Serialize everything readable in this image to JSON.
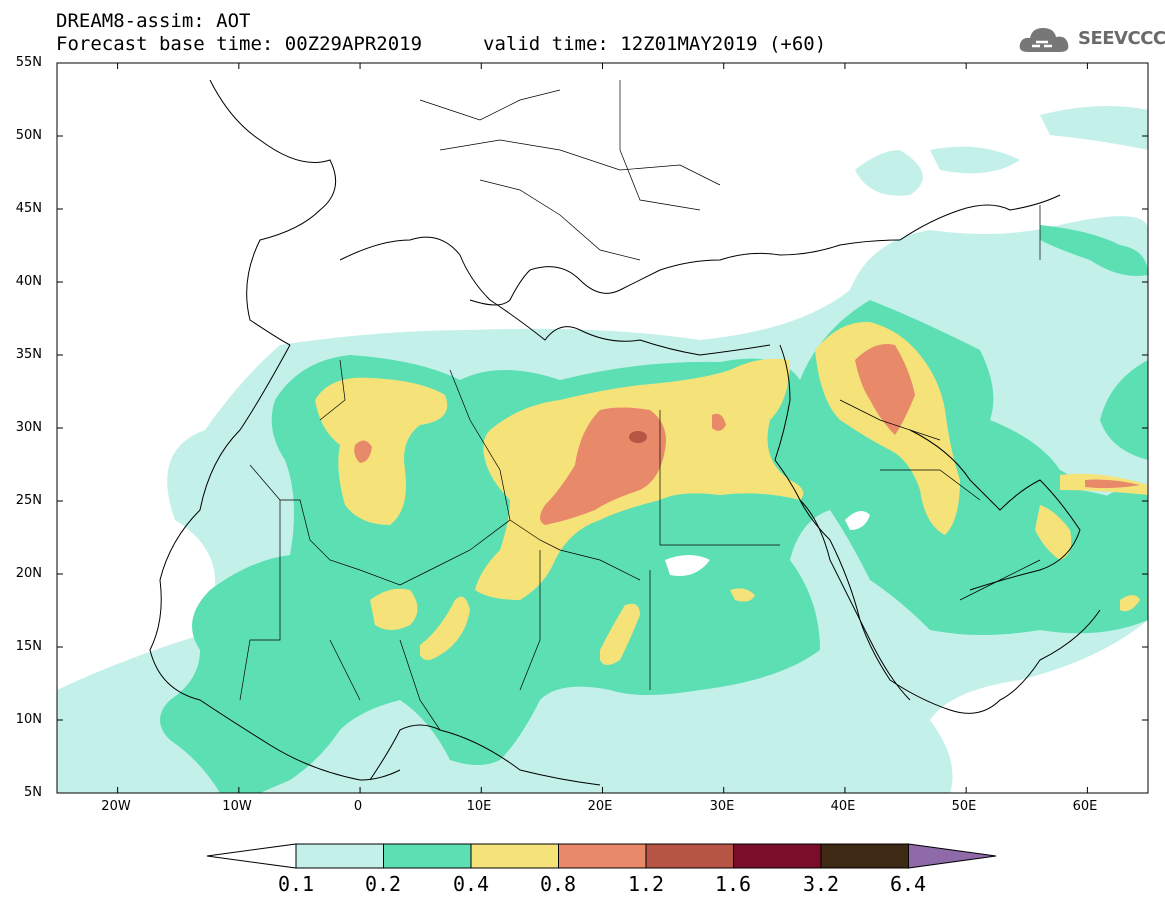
{
  "header": {
    "title_line1": "DREAM8-assim: AOT",
    "title_base": "Forecast base time: 00Z29APR2019",
    "title_valid": "valid time: 12Z01MAY2019 (+60)",
    "logo_text": "SEEVCCC"
  },
  "map": {
    "lat_labels": [
      "55N",
      "50N",
      "45N",
      "40N",
      "35N",
      "30N",
      "25N",
      "20N",
      "15N",
      "10N",
      "5N"
    ],
    "lon_labels": [
      "20W",
      "10W",
      "0",
      "10E",
      "20E",
      "30E",
      "40E",
      "50E",
      "60E"
    ],
    "lat_range": [
      5,
      55
    ],
    "lon_range": [
      -25,
      65
    ],
    "colors": {
      "c01": "#c4f0ea",
      "c02": "#5ddfb4",
      "c04": "#f5e37a",
      "c08": "#e8896a",
      "c12": "#b65544",
      "c16": "#7a0d2a",
      "c32": "#3e2914",
      "c64": "#8e6aa8",
      "border": "#000000"
    }
  },
  "colorbar": {
    "labels": [
      "0.1",
      "0.2",
      "0.4",
      "0.8",
      "1.2",
      "1.6",
      "3.2",
      "6.4"
    ],
    "colors": [
      "#c4f0ea",
      "#5ddfb4",
      "#f5e37a",
      "#e8896a",
      "#b65544",
      "#7a0d2a",
      "#3e2914"
    ],
    "upper_extend_color": "#8e6aa8",
    "lower_extend_color": "#ffffff"
  }
}
